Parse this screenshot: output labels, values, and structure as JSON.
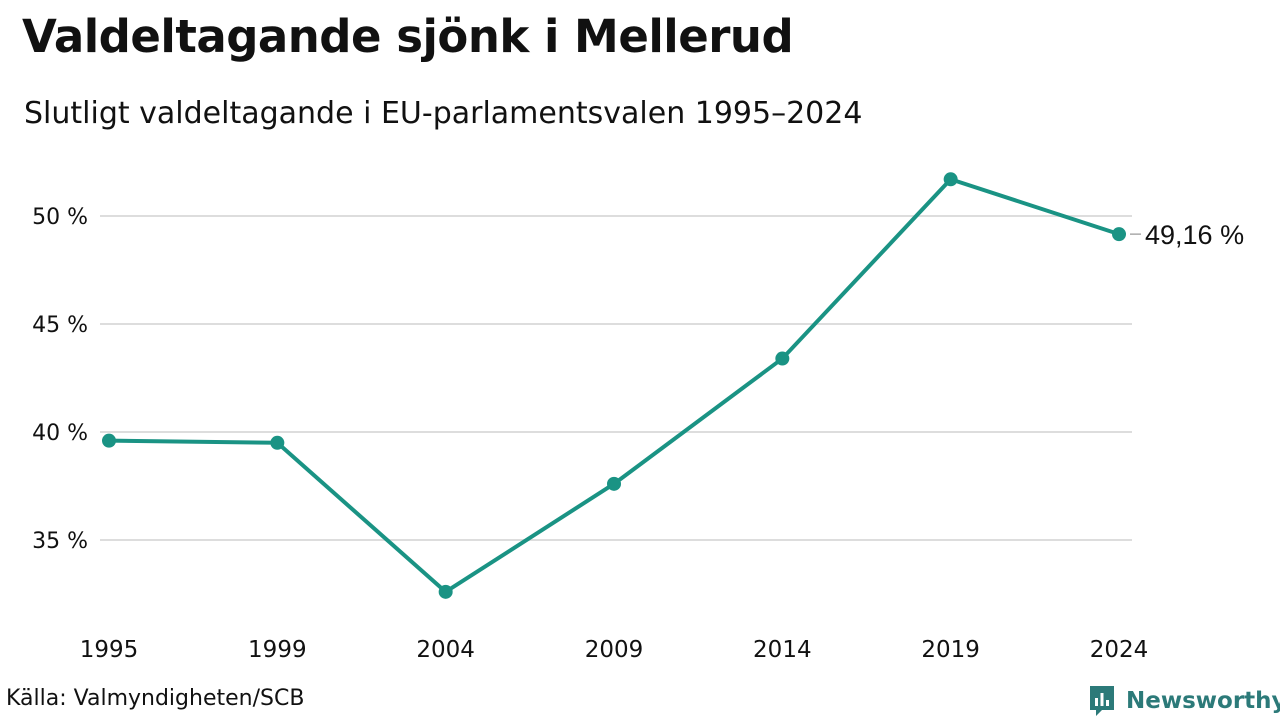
{
  "header": {
    "title": "Valdeltagande sjönk i Mellerud",
    "subtitle": "Slutligt valdeltagande i EU-parlamentsvalen 1995–2024"
  },
  "footer": {
    "source": "Källa: Valmyndigheten/SCB",
    "brand": "Newsworthy",
    "brand_icon": "bar-chart-speech-bubble-icon"
  },
  "colors": {
    "line": "#1a9384",
    "grid": "#dddddd",
    "text": "#111111",
    "brand": "#2c7a79"
  },
  "chart_data": {
    "type": "line",
    "title": "Valdeltagande sjönk i Mellerud",
    "subtitle": "Slutligt valdeltagande i EU-parlamentsvalen 1995–2024",
    "x": [
      "1995",
      "1999",
      "2004",
      "2009",
      "2014",
      "2019",
      "2024"
    ],
    "series": [
      {
        "values": [
          39.6,
          39.5,
          32.6,
          37.6,
          43.4,
          51.7,
          49.16
        ],
        "end_label": "49,16 %"
      }
    ],
    "y_ticks": [
      35,
      40,
      45,
      50
    ],
    "y_tick_labels": [
      "35 %",
      "40 %",
      "45 %",
      "50 %"
    ],
    "ylim": [
      31.5,
      53.5
    ],
    "grid": true,
    "legend": "none",
    "xlabel": "",
    "ylabel": ""
  }
}
